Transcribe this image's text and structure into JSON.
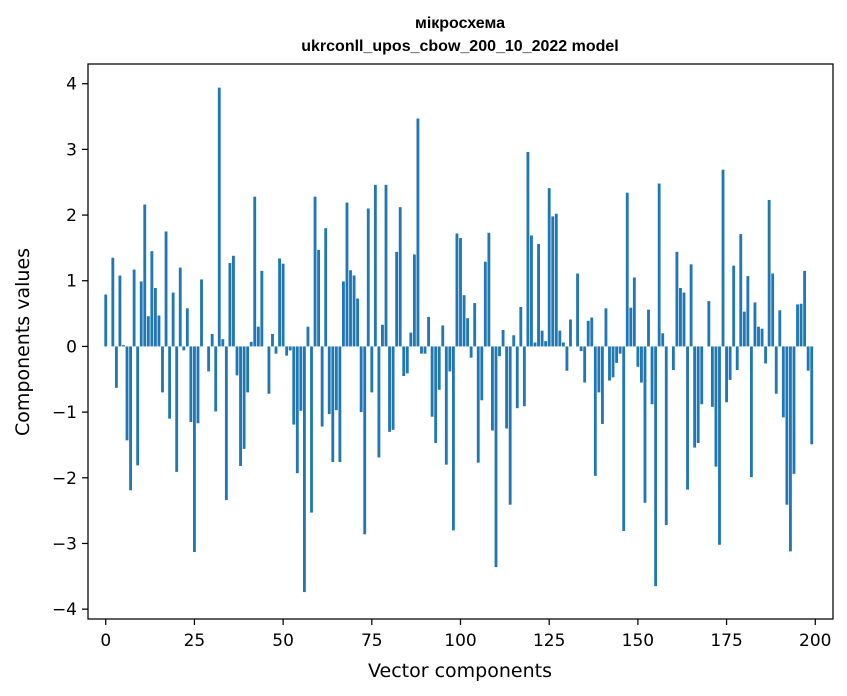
{
  "chart_data": {
    "type": "bar",
    "title_line1": "мікросхема",
    "title_line2": "ukrconll_upos_cbow_200_10_2022 model",
    "xlabel": "Vector components",
    "ylabel": "Components values",
    "xlim": [
      -5,
      205
    ],
    "ylim": [
      -4.15,
      4.3
    ],
    "xticks": [
      0,
      25,
      50,
      75,
      100,
      125,
      150,
      175,
      200
    ],
    "yticks": [
      -4,
      -3,
      -2,
      -1,
      0,
      1,
      2,
      3,
      4
    ],
    "color": "#1f77b4",
    "x_start": 0,
    "values": [
      0.79,
      0.0,
      1.35,
      -0.63,
      1.08,
      0.02,
      -1.43,
      -2.19,
      1.17,
      -1.81,
      0.99,
      2.16,
      0.46,
      1.45,
      0.89,
      0.47,
      -0.7,
      1.75,
      -1.1,
      0.82,
      -1.91,
      1.2,
      -0.06,
      0.58,
      -1.15,
      -3.13,
      -1.17,
      1.02,
      0.0,
      -0.38,
      0.19,
      -0.99,
      3.94,
      0.11,
      -2.34,
      1.27,
      1.38,
      -0.44,
      -1.82,
      -1.56,
      -0.7,
      0.07,
      2.28,
      0.3,
      1.15,
      0.0,
      -0.72,
      0.19,
      -0.11,
      1.34,
      1.26,
      -0.14,
      -0.06,
      -1.19,
      -1.93,
      -0.98,
      -3.74,
      0.3,
      -2.53,
      2.28,
      1.47,
      -1.22,
      1.8,
      -1.03,
      -1.76,
      -0.97,
      -1.76,
      0.99,
      2.19,
      1.16,
      1.08,
      0.73,
      -1.0,
      -2.86,
      2.1,
      -0.7,
      2.46,
      -1.69,
      0.33,
      2.46,
      -1.3,
      -1.27,
      1.44,
      2.12,
      -0.45,
      -0.41,
      0.21,
      1.4,
      3.47,
      -0.11,
      -0.11,
      0.45,
      -1.07,
      -1.47,
      -0.66,
      0.32,
      -1.8,
      -0.38,
      -2.8,
      1.72,
      1.65,
      0.78,
      0.43,
      -0.17,
      0.66,
      -1.77,
      -0.82,
      1.29,
      1.73,
      -1.28,
      -3.36,
      -0.15,
      0.25,
      -1.25,
      -2.41,
      0.17,
      -0.94,
      0.6,
      -0.91,
      2.96,
      1.69,
      0.06,
      1.56,
      0.24,
      0.08,
      2.41,
      1.98,
      2.02,
      0.24,
      0.06,
      -0.37,
      0.41,
      0.0,
      1.11,
      -0.07,
      -0.55,
      0.39,
      0.44,
      -1.97,
      -0.7,
      -1.18,
      0.58,
      -0.52,
      -0.47,
      -0.25,
      -0.11,
      -2.81,
      2.34,
      0.59,
      1.05,
      -0.31,
      -0.55,
      -2.38,
      0.56,
      -0.88,
      -3.65,
      2.48,
      0.2,
      -2.72,
      0.0,
      -0.36,
      1.44,
      0.89,
      0.82,
      -2.18,
      1.25,
      -1.54,
      -1.47,
      -0.88,
      0.0,
      0.69,
      -0.92,
      -1.83,
      -3.02,
      2.69,
      -0.85,
      -0.51,
      1.23,
      -0.36,
      1.71,
      0.53,
      1.07,
      -1.99,
      0.67,
      0.3,
      0.27,
      -0.26,
      2.23,
      1.11,
      -0.72,
      0.55,
      -1.08,
      -2.41,
      -3.12,
      -1.94,
      0.64,
      0.65,
      1.15,
      -0.37,
      -1.49
    ]
  }
}
